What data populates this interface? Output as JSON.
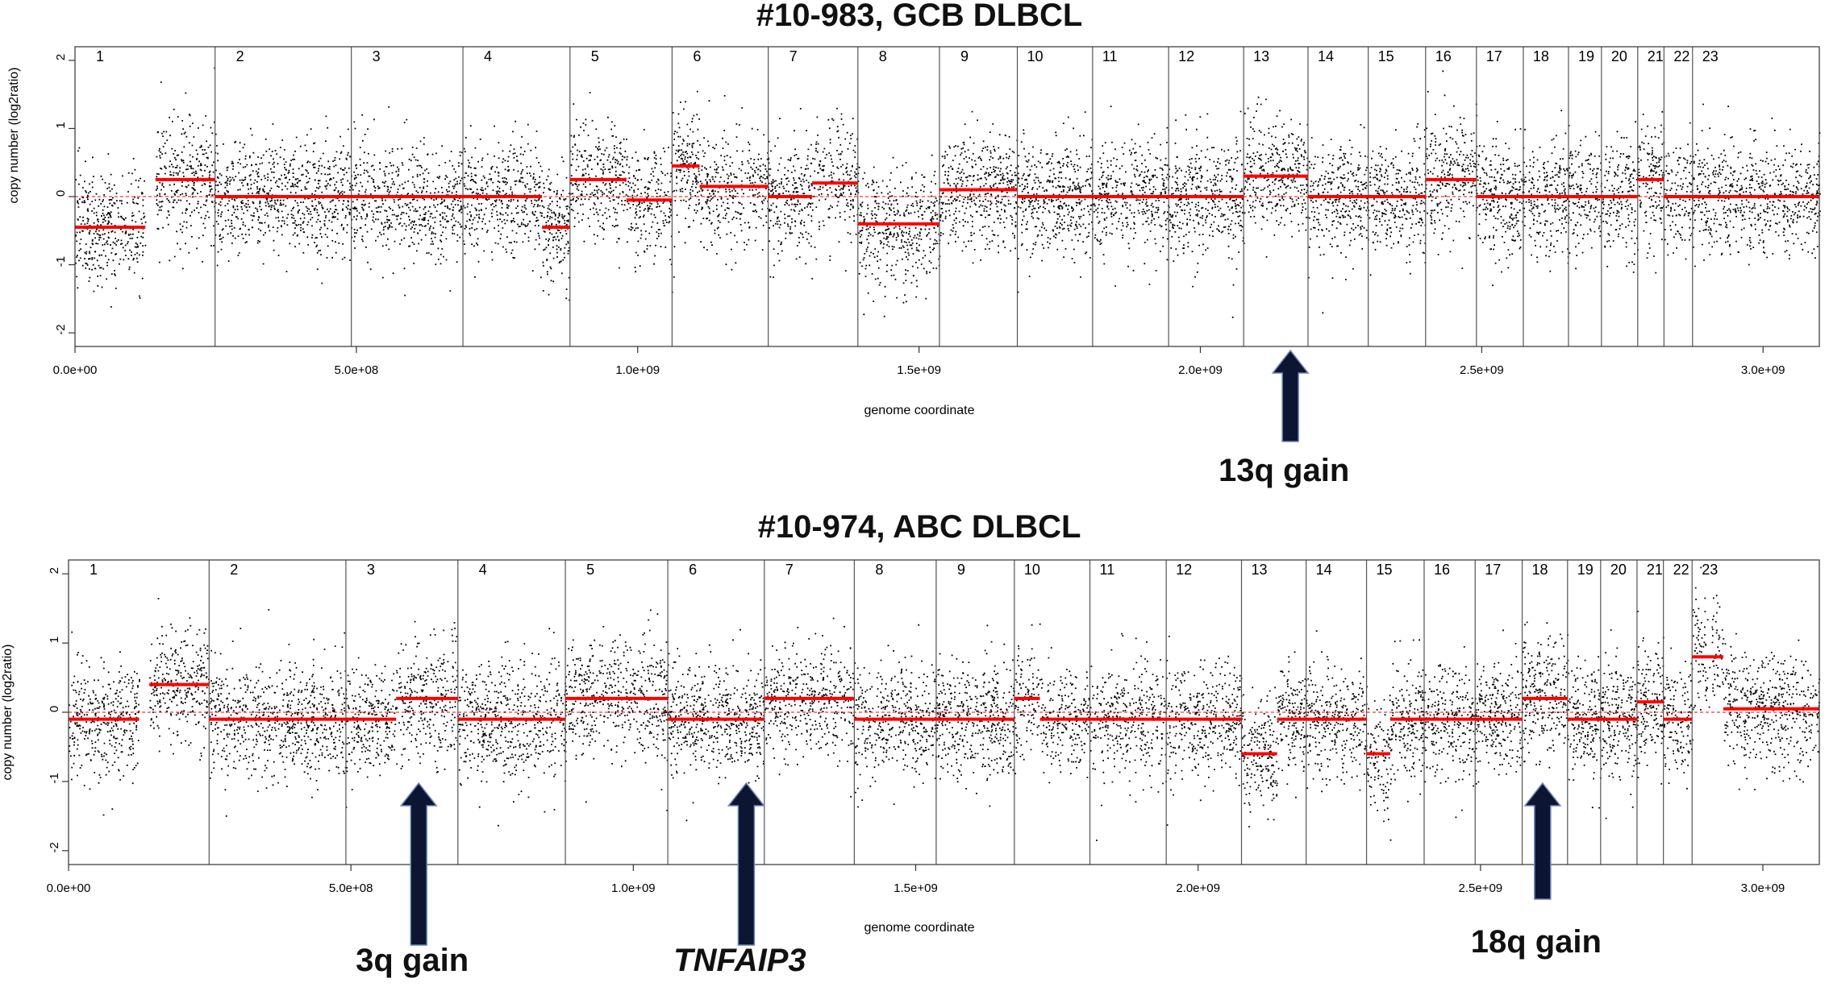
{
  "chart_data": [
    {
      "type": "scatter",
      "title": "#10-983, GCB DLBCL",
      "xlabel": "genome coordinate",
      "ylabel": "copy number (log2ratio)",
      "xlim": [
        0,
        3100000000.0
      ],
      "ylim": [
        -2.2,
        2.2
      ],
      "x_ticks": [
        {
          "value": 0,
          "label": "0.0e+00"
        },
        {
          "value": 500000000,
          "label": "5.0e+08"
        },
        {
          "value": 1000000000,
          "label": "1.0e+09"
        },
        {
          "value": 1500000000,
          "label": "1.5e+09"
        },
        {
          "value": 2000000000,
          "label": "2.0e+09"
        },
        {
          "value": 2500000000,
          "label": "2.5e+09"
        },
        {
          "value": 3000000000,
          "label": "3.0e+09"
        }
      ],
      "y_ticks": [
        -2,
        -1,
        0,
        1,
        2
      ],
      "point_color": "#000000",
      "segment_color": "#ff0000",
      "chromosome_boundaries": [
        248900000,
        491100000,
        689400000,
        879700000,
        1061100000,
        1232000000,
        1391300000,
        1536300000,
        1674700000,
        1808500000,
        1943600000,
        2076900000,
        2191300000,
        2298300000,
        2400300000,
        2490600000,
        2573900000,
        2654200000,
        2712800000,
        2777200000,
        2823900000,
        2874700000
      ],
      "chromosome_labels": [
        "1",
        "2",
        "3",
        "4",
        "5",
        "6",
        "7",
        "8",
        "9",
        "10",
        "11",
        "12",
        "13",
        "14",
        "15",
        "16",
        "17",
        "18",
        "19",
        "20",
        "21",
        "22",
        "23"
      ],
      "segments": [
        {
          "start": 0,
          "end": 125000000,
          "value": -0.45
        },
        {
          "start": 143000000,
          "end": 248900000,
          "value": 0.25
        },
        {
          "start": 248900000,
          "end": 491100000,
          "value": 0.0
        },
        {
          "start": 491100000,
          "end": 689400000,
          "value": 0.0
        },
        {
          "start": 689400000,
          "end": 830000000,
          "value": 0.0
        },
        {
          "start": 830000000,
          "end": 879700000,
          "value": -0.45
        },
        {
          "start": 879700000,
          "end": 980000000,
          "value": 0.25
        },
        {
          "start": 980000000,
          "end": 1061100000,
          "value": -0.05
        },
        {
          "start": 1061100000,
          "end": 1110000000,
          "value": 0.45
        },
        {
          "start": 1110000000,
          "end": 1232000000,
          "value": 0.15
        },
        {
          "start": 1232000000,
          "end": 1310000000,
          "value": 0.0
        },
        {
          "start": 1310000000,
          "end": 1391300000,
          "value": 0.2
        },
        {
          "start": 1391300000,
          "end": 1536300000,
          "value": -0.4
        },
        {
          "start": 1536300000,
          "end": 1674700000,
          "value": 0.1
        },
        {
          "start": 1674700000,
          "end": 2076900000,
          "value": 0.0
        },
        {
          "start": 2076900000,
          "end": 2191300000,
          "value": 0.3
        },
        {
          "start": 2191300000,
          "end": 2400300000,
          "value": 0.0
        },
        {
          "start": 2400300000,
          "end": 2490600000,
          "value": 0.25
        },
        {
          "start": 2490600000,
          "end": 2777200000,
          "value": 0.0
        },
        {
          "start": 2777200000,
          "end": 2823900000,
          "value": 0.25
        },
        {
          "start": 2823900000,
          "end": 3100000000,
          "value": 0.0
        }
      ],
      "annotations": [
        {
          "label": "13q gain",
          "x": 2160000000
        }
      ]
    },
    {
      "type": "scatter",
      "title": "#10-974, ABC DLBCL",
      "xlabel": "genome coordinate",
      "ylabel": "copy number (log2ratio)",
      "xlim": [
        0,
        3100000000.0
      ],
      "ylim": [
        -2.2,
        2.2
      ],
      "x_ticks": [
        {
          "value": 0,
          "label": "0.0e+00"
        },
        {
          "value": 500000000,
          "label": "5.0e+08"
        },
        {
          "value": 1000000000,
          "label": "1.0e+09"
        },
        {
          "value": 1500000000,
          "label": "1.5e+09"
        },
        {
          "value": 2000000000,
          "label": "2.0e+09"
        },
        {
          "value": 2500000000,
          "label": "2.5e+09"
        },
        {
          "value": 3000000000,
          "label": "3.0e+09"
        }
      ],
      "y_ticks": [
        -2,
        -1,
        0,
        1,
        2
      ],
      "point_color": "#000000",
      "segment_color": "#ff0000",
      "chromosome_boundaries": [
        248900000,
        491100000,
        689400000,
        879700000,
        1061100000,
        1232000000,
        1391300000,
        1536300000,
        1674700000,
        1808500000,
        1943600000,
        2076900000,
        2191300000,
        2298300000,
        2400300000,
        2490600000,
        2573900000,
        2654200000,
        2712800000,
        2777200000,
        2823900000,
        2874700000
      ],
      "chromosome_labels": [
        "1",
        "2",
        "3",
        "4",
        "5",
        "6",
        "7",
        "8",
        "9",
        "10",
        "11",
        "12",
        "13",
        "14",
        "15",
        "16",
        "17",
        "18",
        "19",
        "20",
        "21",
        "22",
        "23"
      ],
      "segments": [
        {
          "start": 0,
          "end": 125000000,
          "value": -0.1
        },
        {
          "start": 143000000,
          "end": 248900000,
          "value": 0.4
        },
        {
          "start": 248900000,
          "end": 491100000,
          "value": -0.1
        },
        {
          "start": 491100000,
          "end": 580000000,
          "value": -0.1
        },
        {
          "start": 580000000,
          "end": 689400000,
          "value": 0.2
        },
        {
          "start": 689400000,
          "end": 879700000,
          "value": -0.1
        },
        {
          "start": 879700000,
          "end": 1061100000,
          "value": 0.2
        },
        {
          "start": 1061100000,
          "end": 1232000000,
          "value": -0.1
        },
        {
          "start": 1232000000,
          "end": 1391300000,
          "value": 0.2
        },
        {
          "start": 1391300000,
          "end": 1674700000,
          "value": -0.1
        },
        {
          "start": 1674700000,
          "end": 1720000000,
          "value": 0.2
        },
        {
          "start": 1720000000,
          "end": 2076900000,
          "value": -0.1
        },
        {
          "start": 2076900000,
          "end": 2140000000,
          "value": -0.6
        },
        {
          "start": 2140000000,
          "end": 2191300000,
          "value": -0.1
        },
        {
          "start": 2191300000,
          "end": 2298300000,
          "value": -0.1
        },
        {
          "start": 2298300000,
          "end": 2340000000,
          "value": -0.6
        },
        {
          "start": 2340000000,
          "end": 2400300000,
          "value": -0.1
        },
        {
          "start": 2400300000,
          "end": 2573900000,
          "value": -0.1
        },
        {
          "start": 2573900000,
          "end": 2654200000,
          "value": 0.2
        },
        {
          "start": 2654200000,
          "end": 2777200000,
          "value": -0.1
        },
        {
          "start": 2777200000,
          "end": 2823900000,
          "value": 0.15
        },
        {
          "start": 2823900000,
          "end": 2874700000,
          "value": -0.1
        },
        {
          "start": 2874700000,
          "end": 2930000000,
          "value": 0.8
        },
        {
          "start": 2930000000,
          "end": 3100000000,
          "value": 0.05
        }
      ],
      "annotations": [
        {
          "label": "3q gain",
          "x": 620000000
        },
        {
          "label": "TNFAIP3",
          "x": 1200000000,
          "italic": true
        },
        {
          "label": "18q gain",
          "x": 2610000000
        }
      ]
    }
  ]
}
